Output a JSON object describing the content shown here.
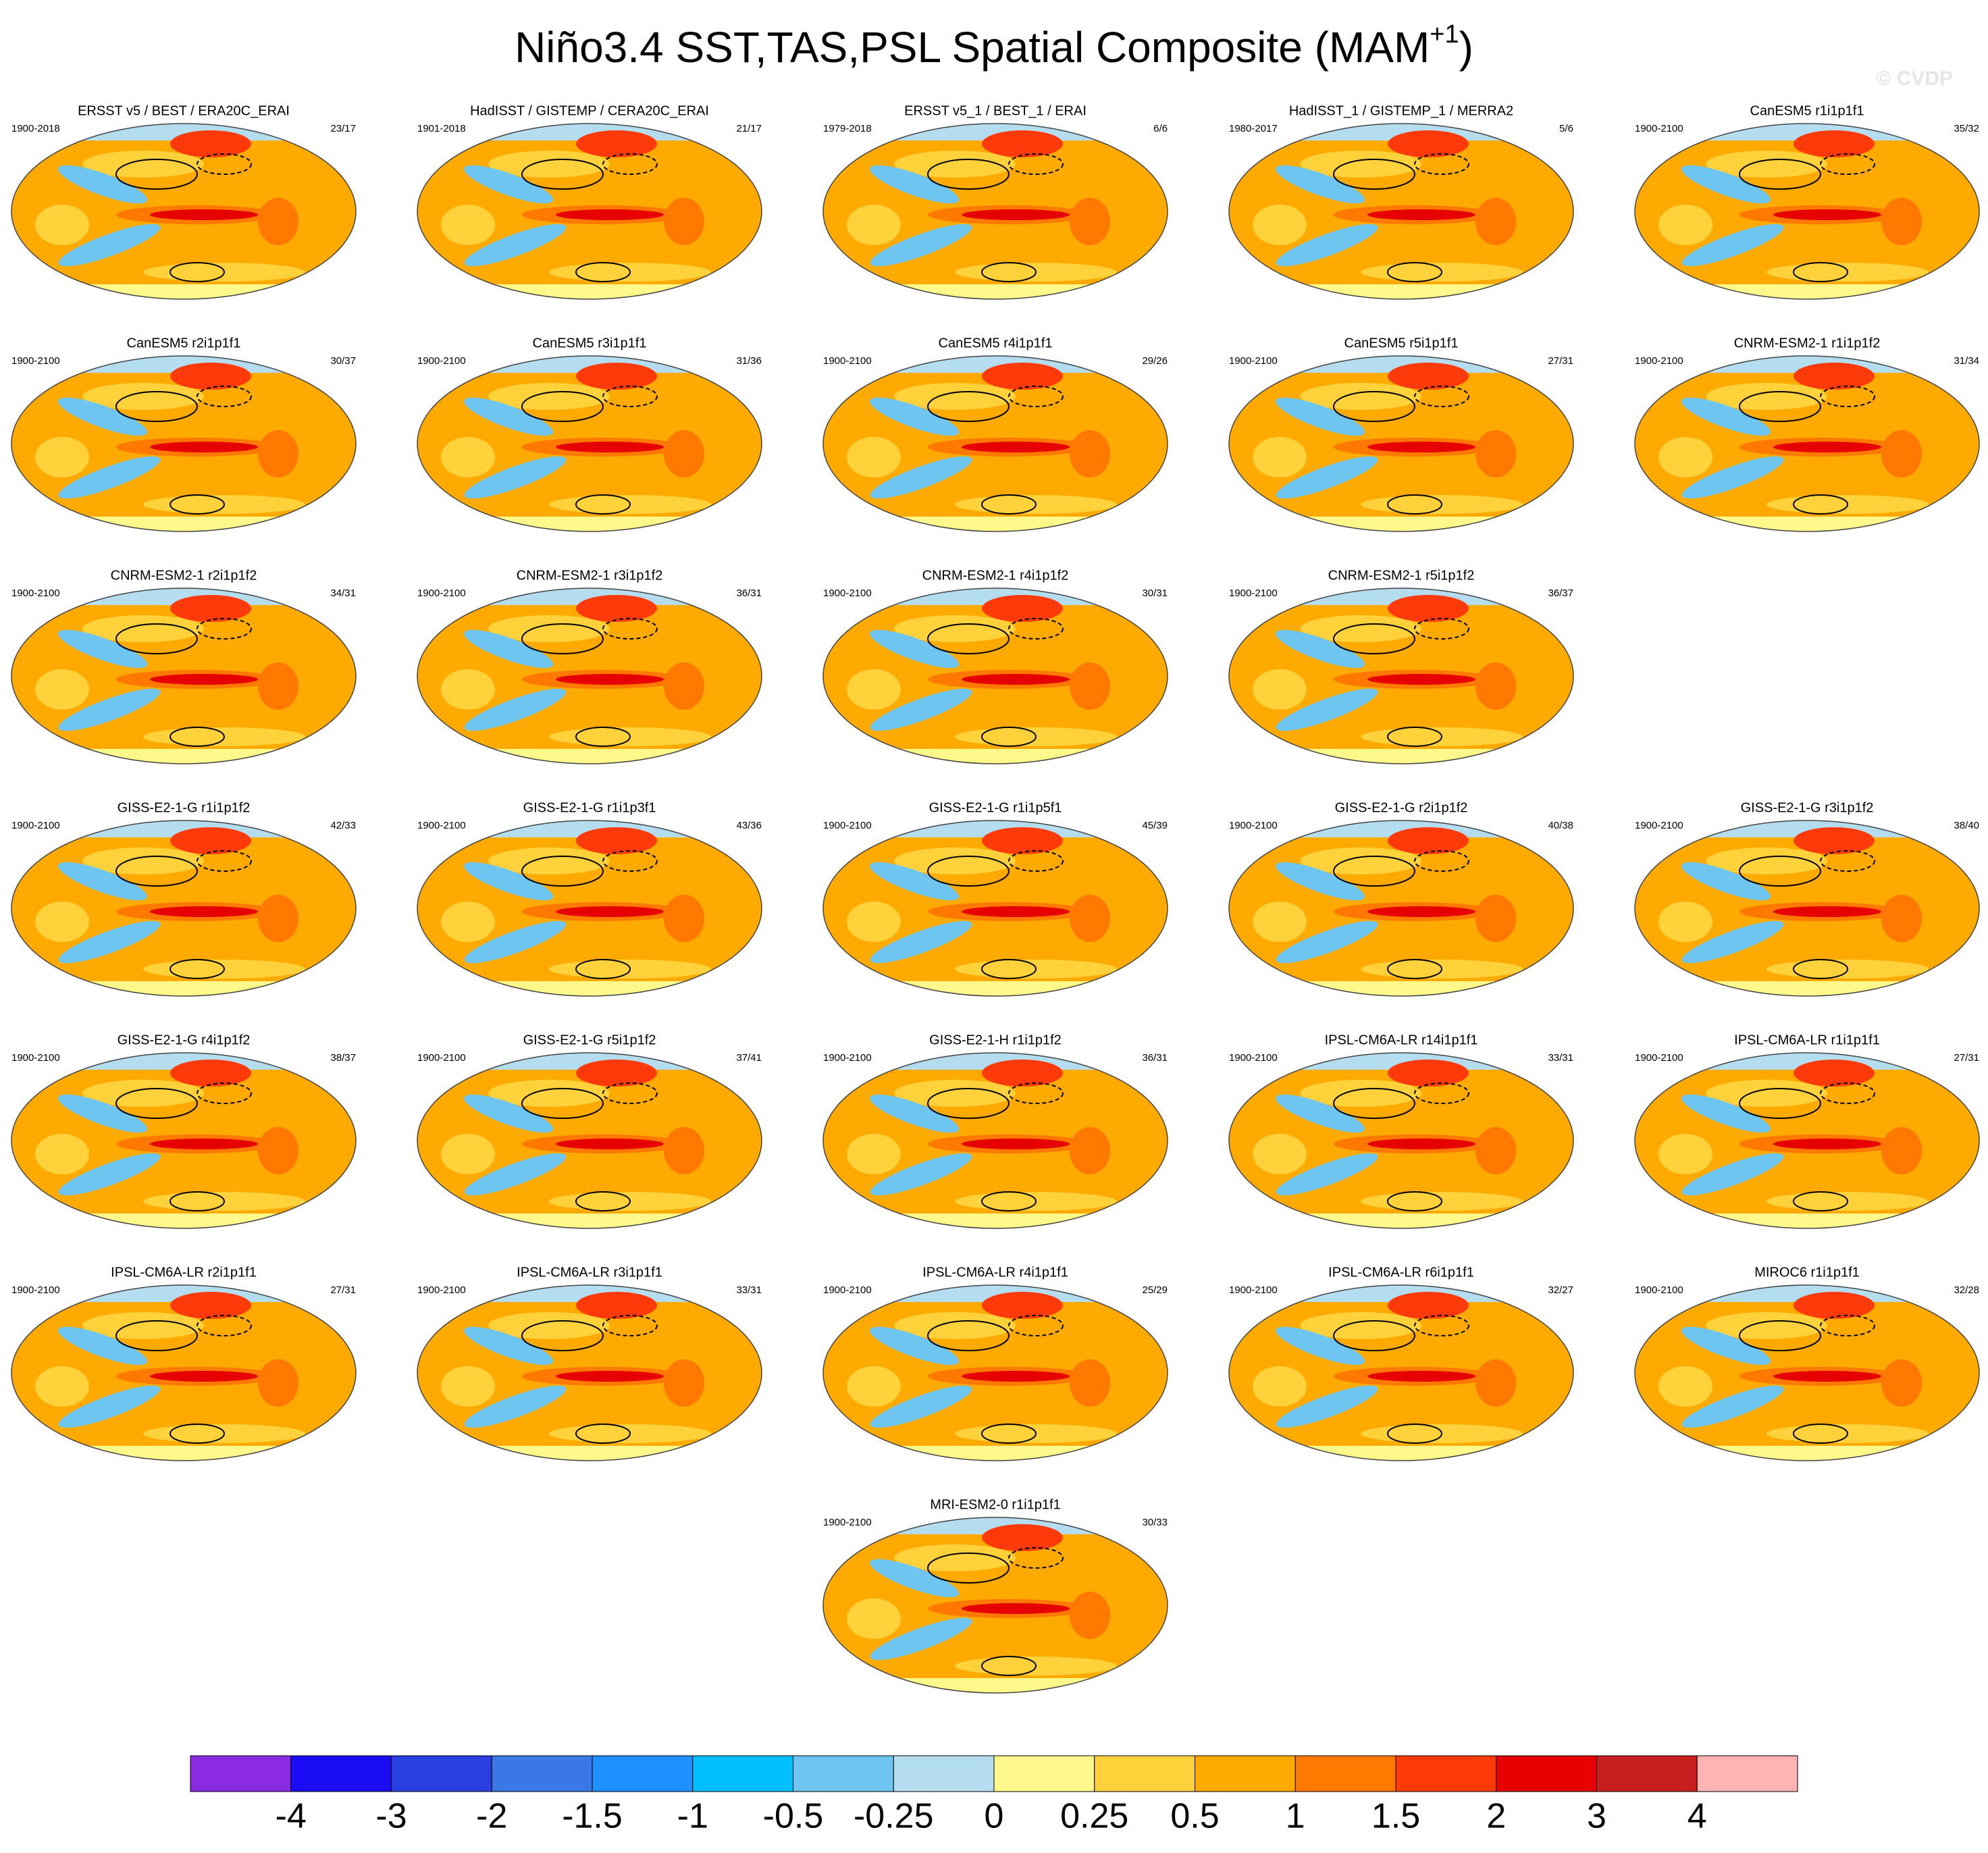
{
  "title": "Niño3.4 SST,TAS,PSL Spatial Composite (MAM",
  "title_superscript": "+1",
  "title_end": ")",
  "watermark": "© CVDP",
  "panels": [
    {
      "title": "ERSST v5 / BEST / ERA20C_ERAI",
      "period": "1900-2018",
      "count": "23/17"
    },
    {
      "title": "HadISST / GISTEMP / CERA20C_ERAI",
      "period": "1901-2018",
      "count": "21/17"
    },
    {
      "title": "ERSST v5_1 / BEST_1 / ERAI",
      "period": "1979-2018",
      "count": "6/6"
    },
    {
      "title": "HadISST_1 / GISTEMP_1 / MERRA2",
      "period": "1980-2017",
      "count": "5/6"
    },
    {
      "title": "CanESM5 r1i1p1f1",
      "period": "1900-2100",
      "count": "35/32"
    },
    {
      "title": "CanESM5 r2i1p1f1",
      "period": "1900-2100",
      "count": "30/37"
    },
    {
      "title": "CanESM5 r3i1p1f1",
      "period": "1900-2100",
      "count": "31/36"
    },
    {
      "title": "CanESM5 r4i1p1f1",
      "period": "1900-2100",
      "count": "29/26"
    },
    {
      "title": "CanESM5 r5i1p1f1",
      "period": "1900-2100",
      "count": "27/31"
    },
    {
      "title": "CNRM-ESM2-1 r1i1p1f2",
      "period": "1900-2100",
      "count": "31/34"
    },
    {
      "title": "CNRM-ESM2-1 r2i1p1f2",
      "period": "1900-2100",
      "count": "34/31"
    },
    {
      "title": "CNRM-ESM2-1 r3i1p1f2",
      "period": "1900-2100",
      "count": "36/31"
    },
    {
      "title": "CNRM-ESM2-1 r4i1p1f2",
      "period": "1900-2100",
      "count": "30/31"
    },
    {
      "title": "CNRM-ESM2-1 r5i1p1f2",
      "period": "1900-2100",
      "count": "36/37"
    },
    {
      "title": "GISS-E2-1-G r1i1p1f2",
      "period": "1900-2100",
      "count": "42/33"
    },
    {
      "title": "GISS-E2-1-G r1i1p3f1",
      "period": "1900-2100",
      "count": "43/36"
    },
    {
      "title": "GISS-E2-1-G r1i1p5f1",
      "period": "1900-2100",
      "count": "45/39"
    },
    {
      "title": "GISS-E2-1-G r2i1p1f2",
      "period": "1900-2100",
      "count": "40/38"
    },
    {
      "title": "GISS-E2-1-G r3i1p1f2",
      "period": "1900-2100",
      "count": "38/40"
    },
    {
      "title": "GISS-E2-1-G r4i1p1f2",
      "period": "1900-2100",
      "count": "38/37"
    },
    {
      "title": "GISS-E2-1-G r5i1p1f2",
      "period": "1900-2100",
      "count": "37/41"
    },
    {
      "title": "GISS-E2-1-H r1i1p1f2",
      "period": "1900-2100",
      "count": "36/31"
    },
    {
      "title": "IPSL-CM6A-LR r14i1p1f1",
      "period": "1900-2100",
      "count": "33/31"
    },
    {
      "title": "IPSL-CM6A-LR r1i1p1f1",
      "period": "1900-2100",
      "count": "27/31"
    },
    {
      "title": "IPSL-CM6A-LR r2i1p1f1",
      "period": "1900-2100",
      "count": "27/31"
    },
    {
      "title": "IPSL-CM6A-LR r3i1p1f1",
      "period": "1900-2100",
      "count": "33/31"
    },
    {
      "title": "IPSL-CM6A-LR r4i1p1f1",
      "period": "1900-2100",
      "count": "25/29"
    },
    {
      "title": "IPSL-CM6A-LR r6i1p1f1",
      "period": "1900-2100",
      "count": "32/27"
    },
    {
      "title": "MIROC6 r1i1p1f1",
      "period": "1900-2100",
      "count": "32/28"
    },
    {
      "title": "MRI-ESM2-0 r1i1p1f1",
      "period": "1900-2100",
      "count": "30/33"
    }
  ],
  "colorbar": {
    "colors": [
      "#8a2be2",
      "#1a0cf5",
      "#2a3fe0",
      "#3a78e8",
      "#1e90ff",
      "#00bfff",
      "#6ec6f0",
      "#b4def0",
      "#fff88a",
      "#ffd23c",
      "#ffaa00",
      "#ff7800",
      "#ff3a0a",
      "#e60000",
      "#c81e1e",
      "#ffb4b4"
    ],
    "labels": [
      -4,
      -3,
      -2,
      -1.5,
      -1,
      -0.5,
      -0.25,
      0,
      0.25,
      0.5,
      1,
      1.5,
      2,
      3,
      4
    ]
  }
}
